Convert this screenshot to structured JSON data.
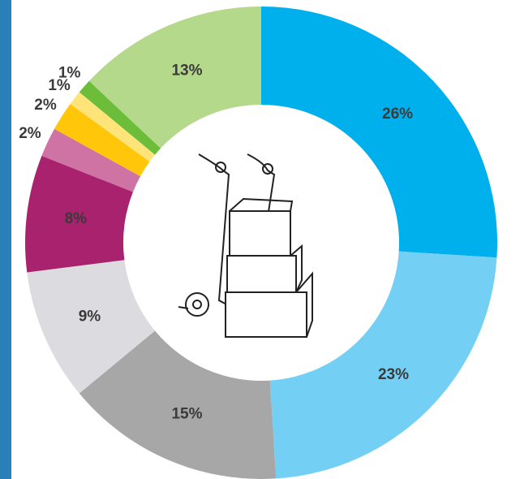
{
  "chart_data": {
    "type": "donut",
    "values": [
      26,
      23,
      15,
      9,
      8,
      2,
      2,
      1,
      1,
      13
    ],
    "value_labels": [
      "26%",
      "23%",
      "15%",
      "9%",
      "8%",
      "2%",
      "2%",
      "1%",
      "1%",
      "13%"
    ],
    "colors": [
      "#00b0ec",
      "#73d0f4",
      "#a7a7a7",
      "#dcdce0",
      "#a9226d",
      "#cf72a4",
      "#ffc60a",
      "#ffe47a",
      "#6cbd3a",
      "#b5d98b"
    ]
  }
}
